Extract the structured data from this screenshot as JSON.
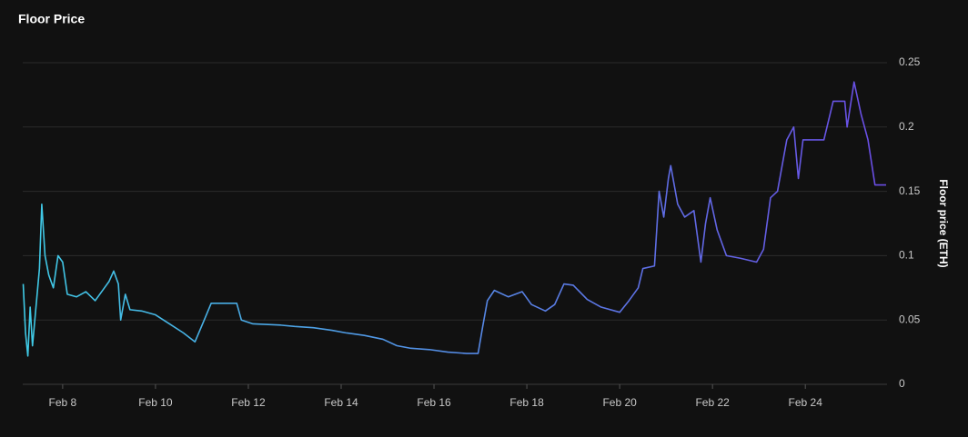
{
  "chart_data": {
    "type": "line",
    "title": "Floor Price",
    "y_label": "Floor price (ETH)",
    "color": [
      "#3fcbe6",
      "#6a4ce4"
    ],
    "grid": true,
    "xlim": [
      7.14,
      25.76
    ],
    "xticks": [
      {
        "value": 8,
        "label": "Feb 8"
      },
      {
        "value": 10,
        "label": "Feb 10"
      },
      {
        "value": 12,
        "label": "Feb 12"
      },
      {
        "value": 14,
        "label": "Feb 14"
      },
      {
        "value": 16,
        "label": "Feb 16"
      },
      {
        "value": 18,
        "label": "Feb 18"
      },
      {
        "value": 20,
        "label": "Feb 20"
      },
      {
        "value": 22,
        "label": "Feb 22"
      },
      {
        "value": 24,
        "label": "Feb 24"
      }
    ],
    "ylim": [
      0,
      0.25
    ],
    "yticks": [
      0,
      0.05,
      0.1,
      0.15,
      0.2,
      0.25
    ],
    "x": [
      7.15,
      7.2,
      7.25,
      7.3,
      7.35,
      7.4,
      7.5,
      7.55,
      7.62,
      7.7,
      7.8,
      7.9,
      8.0,
      8.1,
      8.3,
      8.5,
      8.7,
      8.9,
      9.0,
      9.1,
      9.2,
      9.25,
      9.35,
      9.45,
      9.7,
      10.0,
      10.3,
      10.6,
      10.85,
      11.05,
      11.2,
      11.75,
      11.85,
      12.1,
      12.7,
      13.0,
      13.4,
      13.8,
      14.1,
      14.5,
      14.9,
      15.2,
      15.5,
      15.9,
      16.3,
      16.7,
      16.95,
      17.05,
      17.15,
      17.3,
      17.6,
      17.9,
      18.1,
      18.4,
      18.6,
      18.8,
      19.0,
      19.3,
      19.6,
      20.0,
      20.2,
      20.4,
      20.5,
      20.75,
      20.85,
      20.95,
      21.05,
      21.1,
      21.25,
      21.4,
      21.6,
      21.75,
      21.85,
      21.95,
      22.1,
      22.3,
      22.6,
      22.95,
      23.1,
      23.25,
      23.4,
      23.6,
      23.75,
      23.85,
      23.95,
      24.4,
      24.6,
      24.85,
      24.9,
      25.05,
      25.2,
      25.35,
      25.5,
      25.74
    ],
    "values": [
      0.078,
      0.04,
      0.022,
      0.06,
      0.03,
      0.05,
      0.09,
      0.14,
      0.1,
      0.085,
      0.075,
      0.1,
      0.095,
      0.07,
      0.068,
      0.072,
      0.065,
      0.075,
      0.08,
      0.088,
      0.078,
      0.05,
      0.07,
      0.058,
      0.057,
      0.054,
      0.047,
      0.04,
      0.033,
      0.05,
      0.063,
      0.063,
      0.05,
      0.047,
      0.046,
      0.045,
      0.044,
      0.042,
      0.04,
      0.038,
      0.035,
      0.03,
      0.028,
      0.027,
      0.025,
      0.024,
      0.024,
      0.045,
      0.065,
      0.073,
      0.068,
      0.072,
      0.062,
      0.057,
      0.062,
      0.078,
      0.077,
      0.066,
      0.06,
      0.056,
      0.065,
      0.075,
      0.09,
      0.092,
      0.15,
      0.13,
      0.16,
      0.17,
      0.14,
      0.13,
      0.135,
      0.095,
      0.125,
      0.145,
      0.12,
      0.1,
      0.098,
      0.095,
      0.105,
      0.145,
      0.15,
      0.19,
      0.2,
      0.16,
      0.19,
      0.19,
      0.22,
      0.22,
      0.2,
      0.235,
      0.21,
      0.19,
      0.155,
      0.155
    ]
  }
}
